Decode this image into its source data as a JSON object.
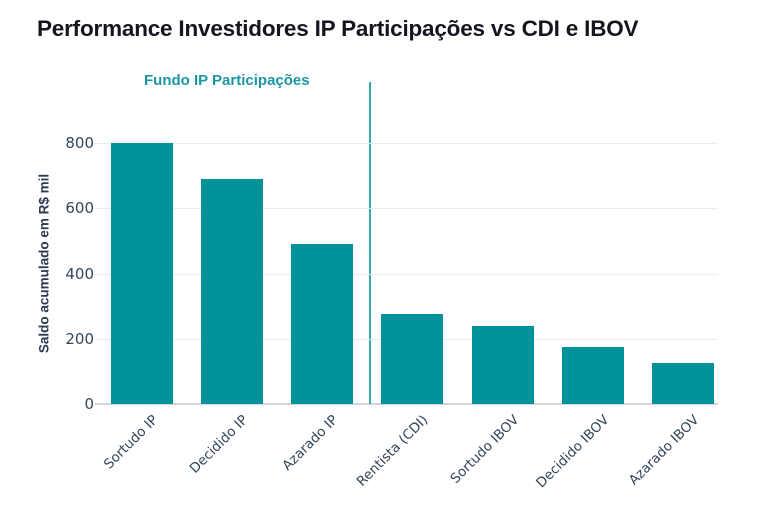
{
  "title": "Performance Investidores IP Participações vs CDI e IBOV",
  "annotation": {
    "label": "Fundo IP Participações",
    "color": "#1b96a4"
  },
  "chart_data": {
    "type": "bar",
    "title": "Performance Investidores IP Participações vs CDI e IBOV",
    "xlabel": "",
    "ylabel": "Saldo acumulado em R$ mil",
    "categories": [
      "Sortudo IP",
      "Decidido IP",
      "Azarado IP",
      "Rentista (CDI)",
      "Sortudo IBOV",
      "Decidido IBOV",
      "Azarado IBOV"
    ],
    "values": [
      800,
      690,
      490,
      275,
      240,
      175,
      125
    ],
    "yticks": [
      0,
      200,
      400,
      600,
      800
    ],
    "ylim": [
      0,
      985
    ],
    "grid": true,
    "legend_position": "none",
    "bar_color": "#00929b",
    "divider_after_category": "Azarado IP",
    "annotation_over_first_group": "Fundo IP Participações"
  },
  "colors": {
    "bar": "#00929b",
    "divider": "#35aab5",
    "axis_text": "#33475b",
    "title_text": "#15151f",
    "gridline": "#eaeaf0",
    "background": "#ffffff"
  }
}
